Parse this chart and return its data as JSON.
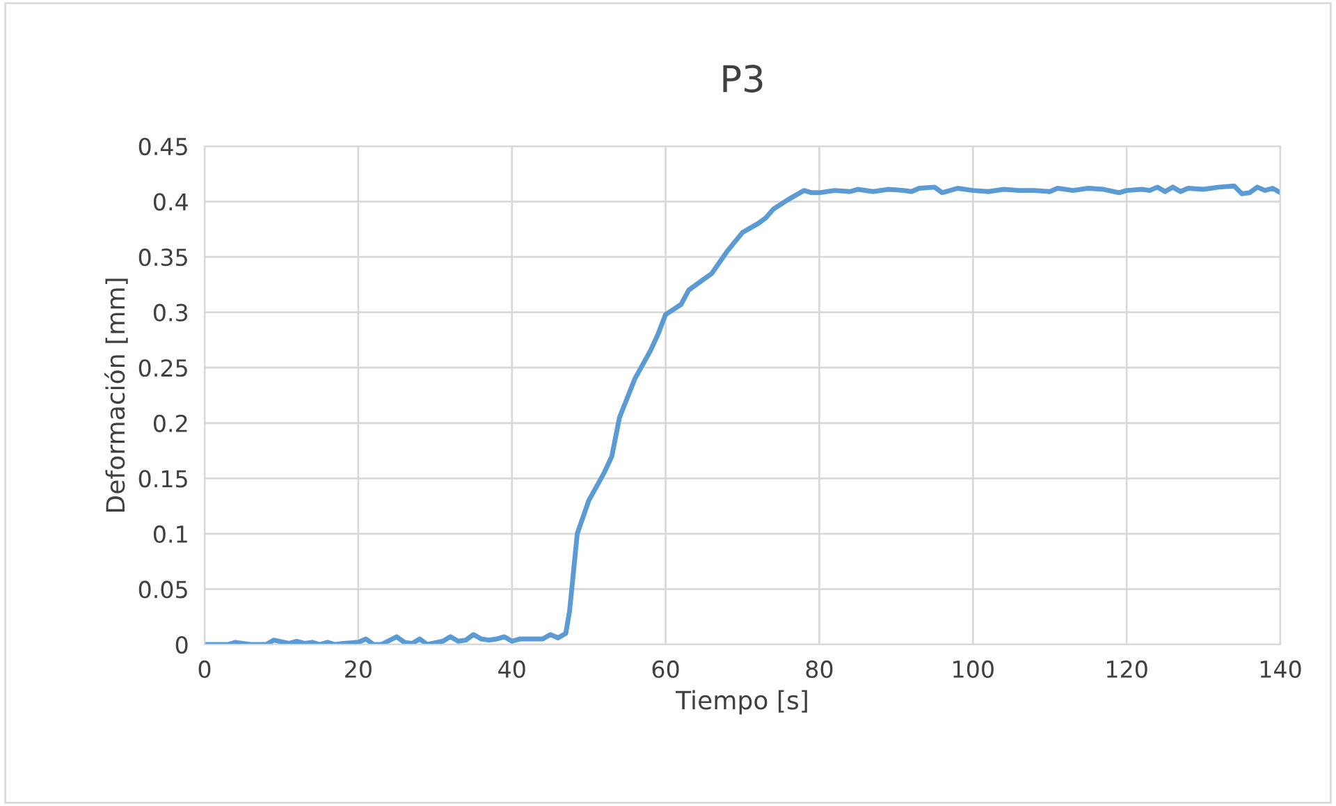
{
  "chart_data": {
    "type": "line",
    "title": "P3",
    "xlabel": "Tiempo [s]",
    "ylabel": "Deformación [mm]",
    "xlim": [
      0,
      140
    ],
    "xticks": [
      0,
      20,
      40,
      60,
      80,
      100,
      120,
      140
    ],
    "ylim": [
      0,
      0.45
    ],
    "yticks": [
      0,
      0.05,
      0.1,
      0.15,
      0.2,
      0.25,
      0.3,
      0.35,
      0.4,
      0.45
    ],
    "grid": true,
    "marker": "none",
    "line_style": "solid",
    "series": [
      {
        "color": "#5b9bd5",
        "x": [
          0,
          3,
          4,
          6,
          8,
          9,
          11,
          12,
          13,
          14,
          15,
          16,
          17,
          18,
          20,
          21,
          22,
          23,
          25,
          26,
          27,
          28,
          29,
          31,
          32,
          33,
          34,
          35,
          36,
          37,
          38,
          39,
          40,
          41,
          42,
          44,
          45,
          46,
          47,
          47.5,
          48.5,
          50,
          52,
          53,
          54,
          56,
          58,
          59,
          60,
          62,
          63,
          65,
          66,
          68,
          70,
          72,
          73,
          74,
          76,
          78,
          79,
          80,
          82,
          84,
          85,
          87,
          89,
          91,
          92,
          93,
          95,
          96,
          98,
          100,
          102,
          104,
          106,
          108,
          110,
          111,
          113,
          115,
          117,
          119,
          120,
          122,
          123,
          124,
          125,
          126,
          127,
          128,
          130,
          132,
          134,
          135,
          136,
          137,
          138,
          139,
          140
        ],
        "values": [
          0,
          0,
          0.002,
          0,
          0,
          0.004,
          0.001,
          0.003,
          0.001,
          0.002,
          0,
          0.002,
          0,
          0.001,
          0.002,
          0.005,
          0,
          0,
          0.007,
          0.002,
          0.001,
          0.005,
          0,
          0.003,
          0.007,
          0.003,
          0.004,
          0.009,
          0.005,
          0.004,
          0.005,
          0.007,
          0.003,
          0.005,
          0.005,
          0.005,
          0.009,
          0.006,
          0.01,
          0.03,
          0.1,
          0.13,
          0.155,
          0.17,
          0.205,
          0.24,
          0.265,
          0.28,
          0.298,
          0.307,
          0.32,
          0.33,
          0.335,
          0.355,
          0.372,
          0.38,
          0.385,
          0.393,
          0.402,
          0.41,
          0.408,
          0.408,
          0.41,
          0.409,
          0.411,
          0.409,
          0.411,
          0.41,
          0.409,
          0.412,
          0.413,
          0.408,
          0.412,
          0.41,
          0.409,
          0.411,
          0.41,
          0.41,
          0.409,
          0.412,
          0.41,
          0.412,
          0.411,
          0.408,
          0.41,
          0.411,
          0.41,
          0.413,
          0.409,
          0.413,
          0.409,
          0.412,
          0.411,
          0.413,
          0.414,
          0.407,
          0.408,
          0.413,
          0.41,
          0.412,
          0.408
        ]
      }
    ]
  }
}
